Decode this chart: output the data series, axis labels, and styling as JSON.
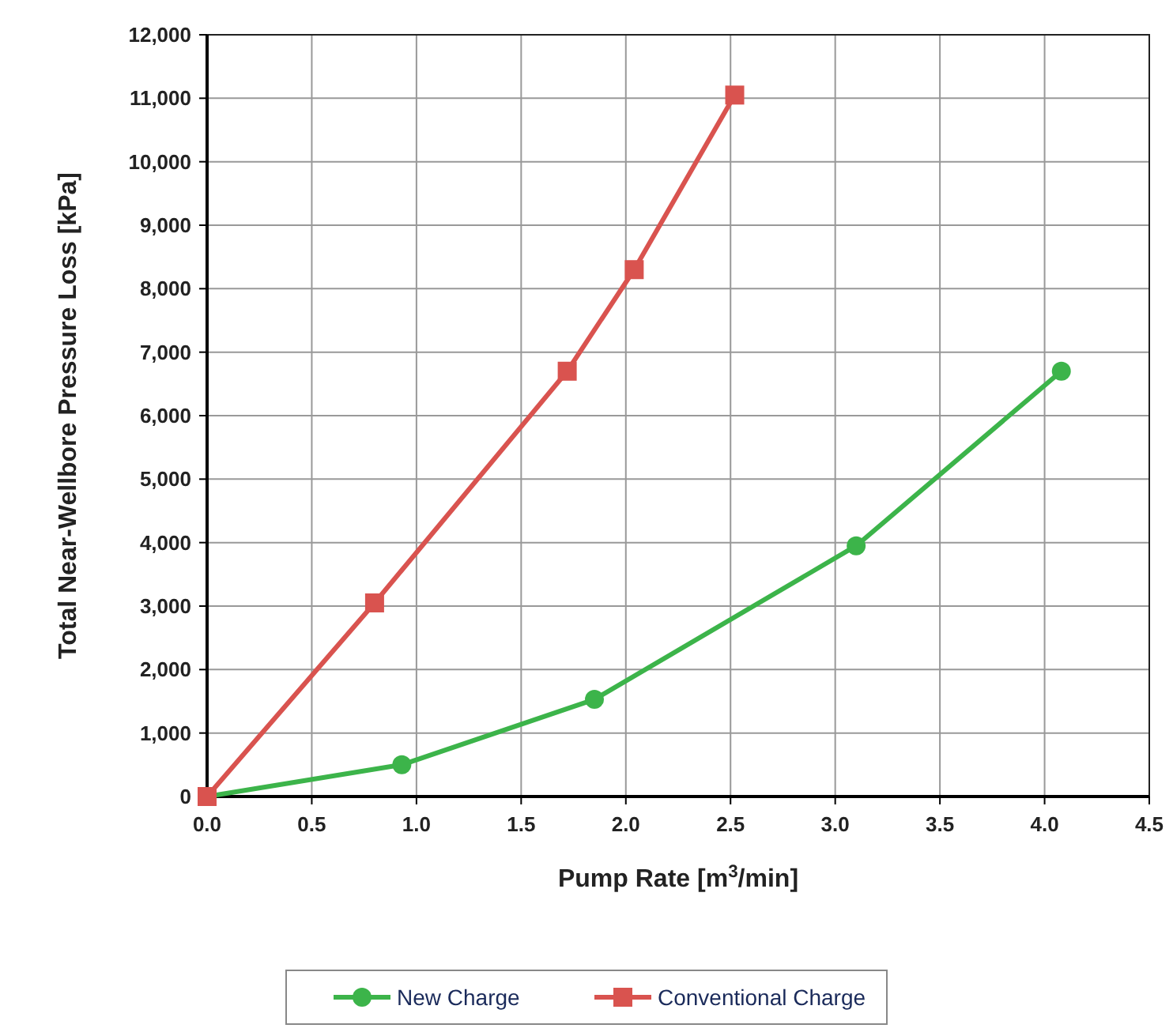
{
  "chart_data": {
    "type": "line",
    "xlabel": "Pump Rate [m$^{3}$/min]",
    "ylabel": "Total Near-Wellbore Pressure Loss [kPa]",
    "xlim": [
      0,
      4.5
    ],
    "xticks": [
      {
        "value": 0,
        "label": "0.0"
      },
      {
        "value": 0.5,
        "label": "0.5"
      },
      {
        "value": 1,
        "label": "1.0"
      },
      {
        "value": 1.5,
        "label": "1.5"
      },
      {
        "value": 2,
        "label": "2.0"
      },
      {
        "value": 2.5,
        "label": "2.5"
      },
      {
        "value": 3,
        "label": "3.0"
      },
      {
        "value": 3.5,
        "label": "3.5"
      },
      {
        "value": 4,
        "label": "4.0"
      },
      {
        "value": 4.5,
        "label": "4.5"
      }
    ],
    "ylim": [
      0,
      12000
    ],
    "yticks": [
      {
        "value": 0,
        "label": "0"
      },
      {
        "value": 1000,
        "label": "1,000"
      },
      {
        "value": 2000,
        "label": "2,000"
      },
      {
        "value": 3000,
        "label": "3,000"
      },
      {
        "value": 4000,
        "label": "4,000"
      },
      {
        "value": 5000,
        "label": "5,000"
      },
      {
        "value": 6000,
        "label": "6,000"
      },
      {
        "value": 7000,
        "label": "7,000"
      },
      {
        "value": 8000,
        "label": "8,000"
      },
      {
        "value": 9000,
        "label": "9,000"
      },
      {
        "value": 10000,
        "label": "10,000"
      },
      {
        "value": 11000,
        "label": "11,000"
      },
      {
        "value": 12000,
        "label": "12,000"
      }
    ],
    "grid": true,
    "legend": "bottom",
    "series": [
      {
        "name": "New Charge",
        "color": "#3cb44a",
        "marker": "circle",
        "x": [
          0,
          0.93,
          1.85,
          3.1,
          4.08
        ],
        "values": [
          0,
          500,
          1530,
          3950,
          6700
        ]
      },
      {
        "name": "Conventional Charge",
        "color": "#d9534f",
        "marker": "square",
        "x": [
          0,
          0.8,
          1.72,
          2.04,
          2.52
        ],
        "values": [
          0,
          3050,
          6700,
          8300,
          11050
        ]
      }
    ]
  }
}
